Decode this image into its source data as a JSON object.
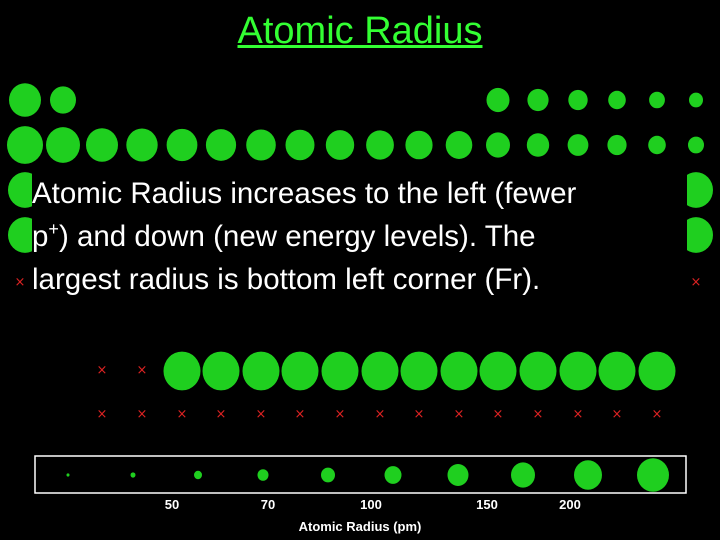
{
  "header": {
    "title": "Atomic Radius"
  },
  "body": {
    "line1": "Atomic Radius increases to the left (fewer",
    "line2a": "p",
    "sup": "+",
    "line2b": ") and down (new energy levels).  The",
    "line3": "largest radius is bottom left corner (Fr)."
  },
  "legend": {
    "ticks": [
      "50",
      "70",
      "100",
      "150",
      "200"
    ],
    "axis_label": "Atomic Radius (pm)"
  }
}
